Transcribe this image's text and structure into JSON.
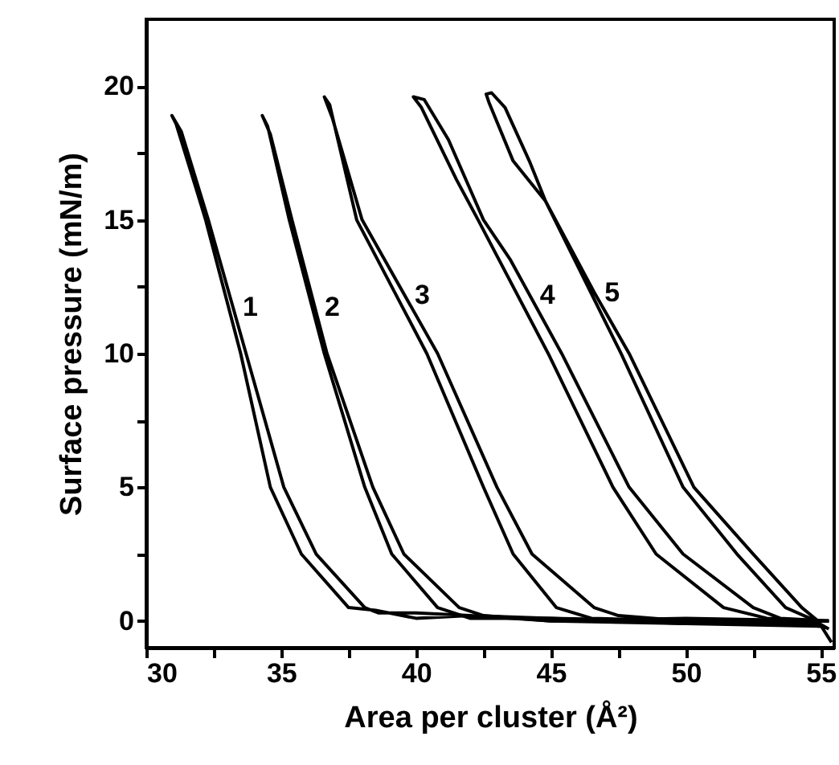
{
  "chart_data": {
    "type": "line",
    "xlabel": "Area per cluster (Å²)",
    "ylabel": "Surface pressure (mN/m)",
    "xlim": [
      30,
      55.5
    ],
    "ylim": [
      -1,
      22.5
    ],
    "xticks": [
      30,
      {
        "value": 32.5,
        "label": null
      },
      35,
      {
        "value": 37.5,
        "label": null
      },
      40,
      {
        "value": 42.5,
        "label": null
      },
      45,
      {
        "value": 47.5,
        "label": null
      },
      50,
      {
        "value": 52.5,
        "label": null
      },
      55
    ],
    "yticks": [
      0,
      {
        "value": 2.5,
        "label": null
      },
      5,
      {
        "value": 7.5,
        "label": null
      },
      10,
      {
        "value": 12.5,
        "label": null
      },
      15,
      {
        "value": 17.5,
        "label": null
      },
      20
    ],
    "grid": false,
    "marker": "none",
    "line_style": "solid",
    "series": [
      {
        "name": "1",
        "color": "#000000",
        "x": [
          55.3,
          50,
          45,
          42,
          40,
          38.6,
          38.1,
          36.3,
          35.1,
          33.7,
          32.3,
          31.3,
          30.95,
          31.1,
          31.9,
          32.2,
          33.5,
          34.6,
          35.75,
          37.5,
          38.5,
          40,
          42,
          45,
          50,
          55
        ],
        "values": [
          0.0,
          0.0,
          0.1,
          0.2,
          0.3,
          0.3,
          0.5,
          2.5,
          5,
          10,
          15,
          18.3,
          18.9,
          18.6,
          16,
          15,
          10,
          5,
          2.5,
          0.5,
          0.4,
          0.1,
          0.2,
          0.0,
          -0.1,
          -0.2
        ]
      },
      {
        "name": "2",
        "color": "#000000",
        "x": [
          55.3,
          50,
          45,
          42.5,
          41.6,
          39.55,
          38.4,
          36.7,
          35.4,
          34.6,
          34.3,
          34.5,
          35.3,
          36.6,
          38.1,
          39.1,
          40.8,
          42,
          45,
          50,
          55
        ],
        "values": [
          0.0,
          0.1,
          0.0,
          0.2,
          0.5,
          2.5,
          5,
          10,
          15,
          18.2,
          18.9,
          18.5,
          15,
          10,
          5,
          2.5,
          0.5,
          0.1,
          0.1,
          -0.1,
          -0.1
        ]
      },
      {
        "name": "3",
        "color": "#000000",
        "x": [
          55.3,
          50,
          47.5,
          46.6,
          44.3,
          43.0,
          40.8,
          38.0,
          36.9,
          36.6,
          36.8,
          37.8,
          40.4,
          42.5,
          43.6,
          45.2,
          46.5,
          50,
          55
        ],
        "values": [
          0,
          0,
          0.2,
          0.5,
          2.5,
          5,
          10,
          15,
          18.8,
          19.6,
          19.3,
          15,
          10,
          5,
          2.5,
          0.5,
          0.1,
          0.0,
          -0.1
        ]
      },
      {
        "name": "4",
        "color": "#000000",
        "x": [
          55.3,
          53.5,
          52.5,
          49.9,
          47.9,
          45.4,
          43.5,
          42.5,
          41.2,
          40.3,
          39.9,
          40.2,
          41.5,
          42.3,
          44.9,
          47.3,
          48.9,
          51.4,
          53,
          55
        ],
        "values": [
          0,
          0.1,
          0.5,
          2.5,
          5,
          10,
          13.5,
          15,
          18,
          19.5,
          19.6,
          19.2,
          16.5,
          15,
          10,
          5,
          2.5,
          0.5,
          0.1,
          0
        ]
      },
      {
        "name": "5",
        "color": "#000000",
        "x": [
          55.4,
          54.9,
          54.3,
          52.5,
          50.3,
          47.9,
          46.6,
          44.8,
          44.2,
          43.3,
          42.8,
          42.6,
          42.7,
          43.6,
          44.8,
          47.6,
          49.9,
          51.9,
          53.7,
          54.6,
          55.3
        ],
        "values": [
          -0.8,
          0,
          0.5,
          2.5,
          5,
          10,
          12.3,
          15.7,
          17.2,
          19.2,
          19.75,
          19.7,
          19.4,
          17.2,
          15.7,
          10,
          5,
          2.5,
          0.5,
          0.1,
          -0.3
        ]
      }
    ]
  }
}
